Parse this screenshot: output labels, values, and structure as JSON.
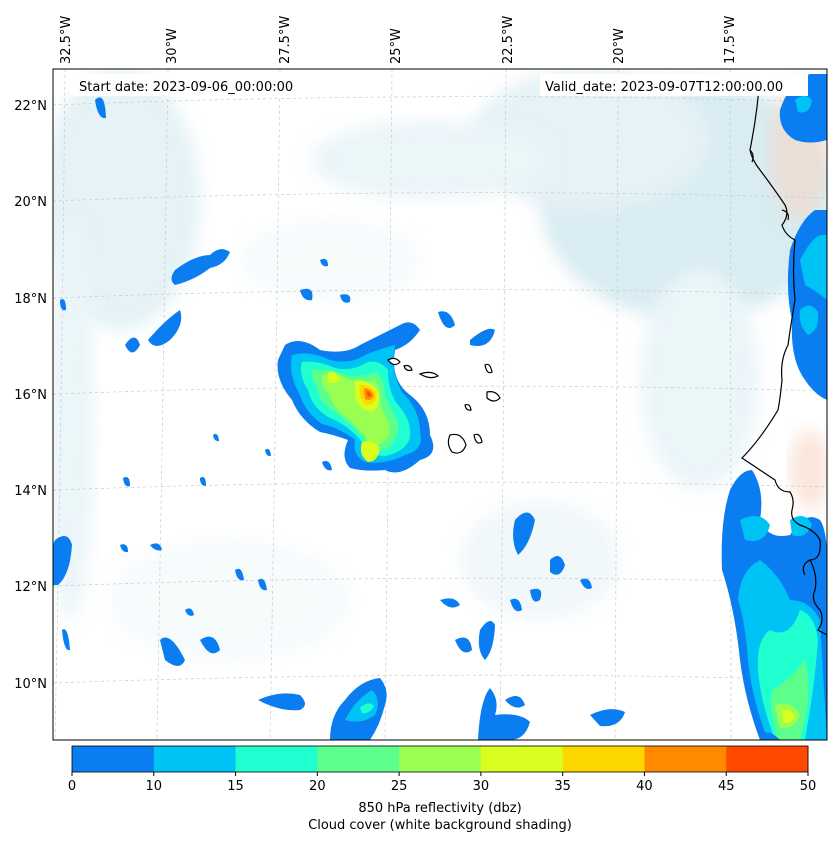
{
  "header": {
    "start_date": "Start date: 2023-09-06_00:00:00",
    "valid_date": "Valid_date: 2023-09-07T12:00:00.00"
  },
  "map": {
    "lon_labels": [
      "32.5°W",
      "30°W",
      "27.5°W",
      "25°W",
      "22.5°W",
      "20°W",
      "17.5°W"
    ],
    "lat_labels": [
      "22°N",
      "20°N",
      "18°N",
      "16°N",
      "14°N",
      "12°N",
      "10°N"
    ],
    "layers": [
      "850 hPa reflectivity",
      "cloud cover",
      "coastlines",
      "graticule"
    ]
  },
  "colorbar": {
    "ticks": [
      "0",
      "10",
      "15",
      "20",
      "25",
      "30",
      "35",
      "40",
      "45",
      "50"
    ],
    "colors": [
      "#0a7df0",
      "#00c3f5",
      "#1fffd0",
      "#5cff8c",
      "#9bff52",
      "#d8ff1f",
      "#ffd700",
      "#ff8a00",
      "#ff4a00"
    ],
    "label_line1": "850 hPa reflectivity (dbz)",
    "label_line2": "Cloud cover (white background shading)"
  },
  "palette": {
    "cloud": "#b9dde8",
    "cloud_light": "#dbeef4",
    "warm": "#f7d6c4",
    "coast": "#000000",
    "grid": "#c8c8c8"
  }
}
